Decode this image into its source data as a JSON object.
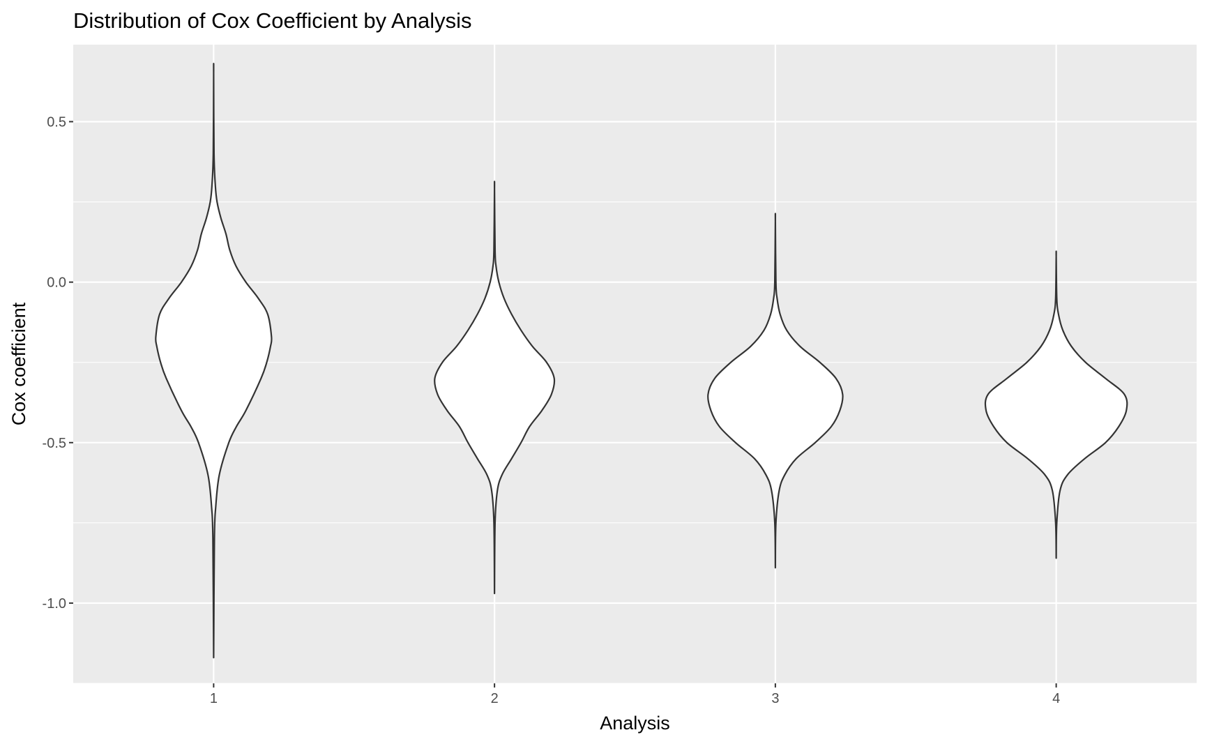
{
  "chart_data": {
    "type": "violin",
    "title": "Distribution of Cox Coefficient by Analysis",
    "xlabel": "Analysis",
    "ylabel": "Cox coefficient",
    "categories": [
      "1",
      "2",
      "3",
      "4"
    ],
    "ylim": [
      -1.25,
      0.74
    ],
    "yticks": [
      -1.0,
      -0.5,
      0.0,
      0.5
    ],
    "ytick_labels": [
      "-1.0",
      "-0.5",
      "0.0",
      "0.5"
    ],
    "grid": true,
    "colors": {
      "panel": "#ebebeb",
      "grid": "#ffffff",
      "fill": "#ffffff",
      "outline": "#333333",
      "tick_text": "#4d4d4d"
    },
    "series": [
      {
        "category": "1",
        "min": -1.17,
        "max": 0.65,
        "profile": [
          [
            -1.17,
            0
          ],
          [
            -0.8,
            0.004
          ],
          [
            -0.7,
            0.011
          ],
          [
            -0.6,
            0.03
          ],
          [
            -0.5,
            0.08
          ],
          [
            -0.45,
            0.12
          ],
          [
            -0.4,
            0.17
          ],
          [
            -0.3,
            0.25
          ],
          [
            -0.25,
            0.28
          ],
          [
            -0.2,
            0.3
          ],
          [
            -0.17,
            0.305
          ],
          [
            -0.1,
            0.285
          ],
          [
            -0.05,
            0.235
          ],
          [
            0.0,
            0.17
          ],
          [
            0.05,
            0.118
          ],
          [
            0.1,
            0.085
          ],
          [
            0.15,
            0.065
          ],
          [
            0.2,
            0.038
          ],
          [
            0.25,
            0.018
          ],
          [
            0.3,
            0.009
          ],
          [
            0.4,
            0.002
          ],
          [
            0.65,
            0
          ]
        ]
      },
      {
        "category": "2",
        "min": -0.97,
        "max": 0.29,
        "profile": [
          [
            -0.97,
            0
          ],
          [
            -0.75,
            0.003
          ],
          [
            -0.65,
            0.015
          ],
          [
            -0.6,
            0.04
          ],
          [
            -0.55,
            0.09
          ],
          [
            -0.5,
            0.14
          ],
          [
            -0.45,
            0.185
          ],
          [
            -0.4,
            0.25
          ],
          [
            -0.35,
            0.3
          ],
          [
            -0.3,
            0.315
          ],
          [
            -0.25,
            0.275
          ],
          [
            -0.2,
            0.2
          ],
          [
            -0.15,
            0.14
          ],
          [
            -0.1,
            0.09
          ],
          [
            -0.05,
            0.05
          ],
          [
            0.0,
            0.023
          ],
          [
            0.05,
            0.008
          ],
          [
            0.1,
            0.003
          ],
          [
            0.29,
            0
          ]
        ]
      },
      {
        "category": "3",
        "min": -0.89,
        "max": 0.19,
        "profile": [
          [
            -0.89,
            0
          ],
          [
            -0.75,
            0.003
          ],
          [
            -0.65,
            0.02
          ],
          [
            -0.6,
            0.05
          ],
          [
            -0.55,
            0.11
          ],
          [
            -0.5,
            0.21
          ],
          [
            -0.45,
            0.295
          ],
          [
            -0.4,
            0.34
          ],
          [
            -0.35,
            0.355
          ],
          [
            -0.3,
            0.32
          ],
          [
            -0.25,
            0.235
          ],
          [
            -0.2,
            0.13
          ],
          [
            -0.15,
            0.06
          ],
          [
            -0.1,
            0.025
          ],
          [
            -0.05,
            0.009
          ],
          [
            0.0,
            0.003
          ],
          [
            0.19,
            0
          ]
        ]
      },
      {
        "category": "4",
        "min": -0.86,
        "max": 0.08,
        "profile": [
          [
            -0.86,
            0
          ],
          [
            -0.75,
            0.003
          ],
          [
            -0.65,
            0.02
          ],
          [
            -0.6,
            0.06
          ],
          [
            -0.55,
            0.15
          ],
          [
            -0.5,
            0.26
          ],
          [
            -0.45,
            0.33
          ],
          [
            -0.4,
            0.37
          ],
          [
            -0.35,
            0.36
          ],
          [
            -0.3,
            0.26
          ],
          [
            -0.25,
            0.155
          ],
          [
            -0.2,
            0.08
          ],
          [
            -0.15,
            0.035
          ],
          [
            -0.1,
            0.012
          ],
          [
            -0.05,
            0.003
          ],
          [
            0.08,
            0
          ]
        ]
      }
    ]
  }
}
